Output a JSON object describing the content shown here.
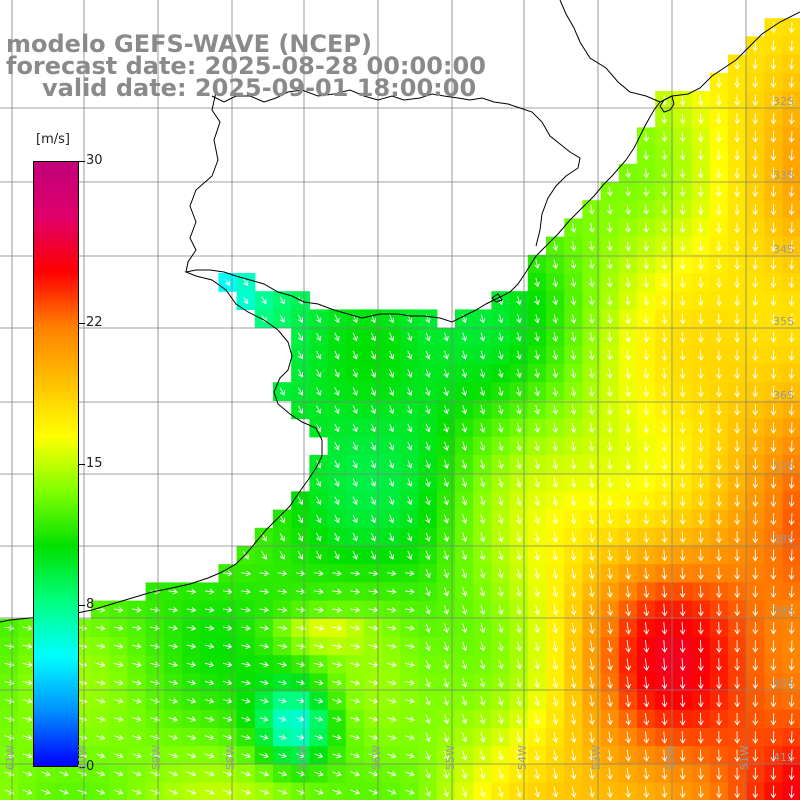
{
  "title": {
    "line1": "modelo GEFS-WAVE (NCEP)",
    "line2": "forecast date: 2025-08-28 00:00:00",
    "line3": "valid date: 2025-09-01 18:00:00"
  },
  "colorbar": {
    "unit": "[m/s]",
    "min": 0,
    "max": 30,
    "ticks": [
      {
        "value": 30,
        "label": "30"
      },
      {
        "value": 22,
        "label": "22"
      },
      {
        "value": 15,
        "label": "15"
      },
      {
        "value": 8,
        "label": "8"
      },
      {
        "value": 0,
        "label": "0"
      }
    ],
    "stops": [
      "#0000ff",
      "#0090ff",
      "#00ffff",
      "#00ff80",
      "#00e000",
      "#80ff00",
      "#ffff00",
      "#ffc000",
      "#ff8000",
      "#ff0000",
      "#e0006a",
      "#c0007a"
    ]
  },
  "map": {
    "lon_labels": [
      "61W",
      "60W",
      "59W",
      "58W",
      "57W",
      "56W",
      "55W",
      "54W",
      "53W",
      "52W",
      "51W"
    ],
    "lat_labels": [
      "32S",
      "33S",
      "34S",
      "35S",
      "36S",
      "37S",
      "38S",
      "39S",
      "40S",
      "41S"
    ],
    "colors": {
      "land": "#ffffff",
      "coast": "#000000",
      "grid": "#808080",
      "arrow": "#ffffff"
    }
  }
}
